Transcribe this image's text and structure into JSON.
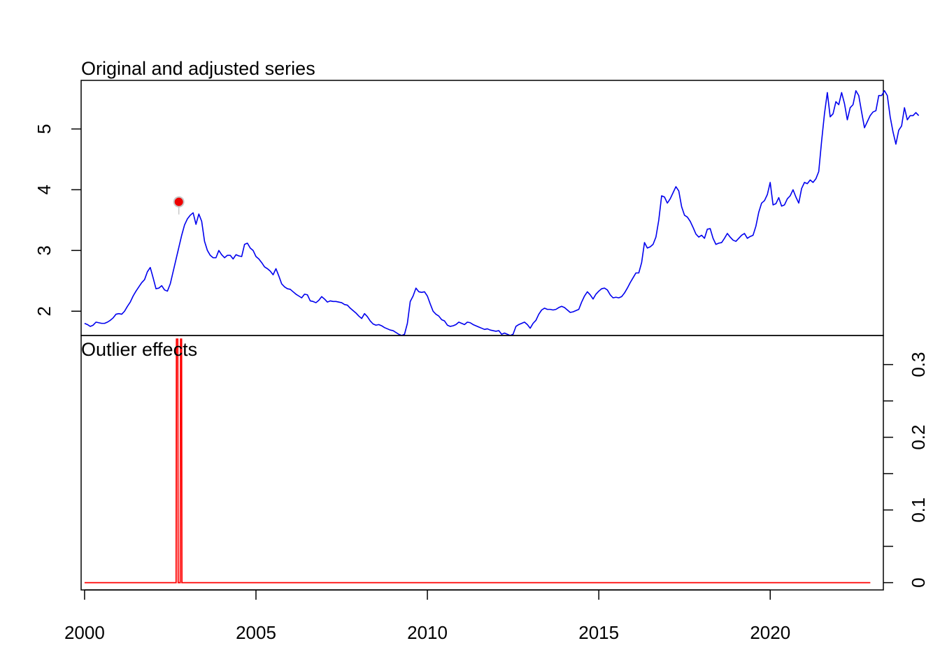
{
  "panels": {
    "top_title": "Original and adjusted series",
    "bottom_title": "Outlier effects"
  },
  "colors": {
    "series": "#0000ee",
    "outlier": "#ff0000",
    "outlier_marker_fill": "#ee0000",
    "outlier_marker_ring": "#c8c8c8",
    "frame": "#000000"
  },
  "chart_data": [
    {
      "panel": "top",
      "type": "line",
      "title": "Original and adjusted series",
      "xlabel": "",
      "ylabel": "",
      "xlim": [
        1999.9,
        2023.3
      ],
      "ylim": [
        1.6,
        5.8
      ],
      "y_ticks": [
        2,
        3,
        4,
        5
      ],
      "y_tick_labels": [
        "2",
        "3",
        "4",
        "5"
      ],
      "y_axis_side": "left",
      "grid": false,
      "series": [
        {
          "color": "#0000ee",
          "x_start": 2000.0,
          "x_step": 0.08333,
          "values": [
            1.8,
            1.78,
            1.75,
            1.77,
            1.82,
            1.81,
            1.8,
            1.8,
            1.82,
            1.85,
            1.89,
            1.95,
            1.96,
            1.95,
            2.0,
            2.08,
            2.15,
            2.25,
            2.33,
            2.4,
            2.47,
            2.52,
            2.65,
            2.72,
            2.55,
            2.37,
            2.38,
            2.42,
            2.35,
            2.33,
            2.45,
            2.65,
            2.85,
            3.05,
            3.25,
            3.42,
            3.52,
            3.58,
            3.62,
            3.43,
            3.6,
            3.48,
            3.15,
            3.0,
            2.92,
            2.88,
            2.88,
            3.0,
            2.93,
            2.88,
            2.92,
            2.92,
            2.86,
            2.93,
            2.91,
            2.9,
            3.1,
            3.12,
            3.04,
            3.0,
            2.9,
            2.86,
            2.8,
            2.73,
            2.7,
            2.66,
            2.6,
            2.7,
            2.58,
            2.45,
            2.4,
            2.37,
            2.36,
            2.32,
            2.28,
            2.25,
            2.22,
            2.28,
            2.27,
            2.17,
            2.16,
            2.14,
            2.18,
            2.24,
            2.2,
            2.15,
            2.17,
            2.16,
            2.16,
            2.15,
            2.14,
            2.11,
            2.1,
            2.05,
            2.01,
            1.97,
            1.92,
            1.88,
            1.96,
            1.91,
            1.84,
            1.79,
            1.77,
            1.78,
            1.76,
            1.73,
            1.71,
            1.69,
            1.68,
            1.65,
            1.62,
            1.6,
            1.62,
            1.8,
            2.16,
            2.25,
            2.38,
            2.32,
            2.31,
            2.32,
            2.25,
            2.12,
            2.0,
            1.95,
            1.92,
            1.86,
            1.84,
            1.77,
            1.75,
            1.76,
            1.78,
            1.82,
            1.8,
            1.78,
            1.82,
            1.81,
            1.78,
            1.76,
            1.74,
            1.72,
            1.7,
            1.71,
            1.69,
            1.68,
            1.67,
            1.68,
            1.62,
            1.64,
            1.62,
            1.6,
            1.62,
            1.75,
            1.78,
            1.8,
            1.82,
            1.78,
            1.72,
            1.8,
            1.85,
            1.95,
            2.02,
            2.05,
            2.03,
            2.03,
            2.02,
            2.03,
            2.06,
            2.08,
            2.06,
            2.02,
            1.98,
            1.99,
            2.01,
            2.03,
            2.15,
            2.25,
            2.32,
            2.27,
            2.2,
            2.28,
            2.33,
            2.37,
            2.38,
            2.35,
            2.27,
            2.22,
            2.23,
            2.22,
            2.24,
            2.3,
            2.38,
            2.47,
            2.55,
            2.63,
            2.63,
            2.8,
            3.13,
            3.04,
            3.06,
            3.1,
            3.22,
            3.5,
            3.9,
            3.88,
            3.78,
            3.85,
            3.95,
            4.05,
            3.98,
            3.72,
            3.58,
            3.55,
            3.48,
            3.38,
            3.27,
            3.22,
            3.25,
            3.2,
            3.35,
            3.36,
            3.2,
            3.1,
            3.12,
            3.13,
            3.2,
            3.28,
            3.22,
            3.17,
            3.15,
            3.2,
            3.25,
            3.28,
            3.2,
            3.23,
            3.25,
            3.4,
            3.63,
            3.78,
            3.82,
            3.92,
            4.12,
            3.75,
            3.77,
            3.87,
            3.73,
            3.75,
            3.85,
            3.9,
            4.0,
            3.88,
            3.78,
            4.02,
            4.12,
            4.1,
            4.16,
            4.12,
            4.18,
            4.3,
            4.8,
            5.25,
            5.6,
            5.2,
            5.25,
            5.45,
            5.4,
            5.6,
            5.42,
            5.15,
            5.35,
            5.4,
            5.63,
            5.55,
            5.28,
            5.02,
            5.12,
            5.22,
            5.28,
            5.3,
            5.55,
            5.55,
            5.63,
            5.55,
            5.2,
            4.95,
            4.75,
            4.98,
            5.05,
            5.35,
            5.15,
            5.22,
            5.22,
            5.27,
            5.22
          ]
        }
      ],
      "outlier_points": [
        {
          "x": 2002.75,
          "y": 3.8
        }
      ]
    },
    {
      "panel": "bottom",
      "type": "line",
      "title": "Outlier effects",
      "xlabel": "",
      "ylabel": "",
      "xlim": [
        1999.9,
        2023.3
      ],
      "ylim": [
        -0.01,
        0.34
      ],
      "y_ticks": [
        0,
        0.05,
        0.1,
        0.15,
        0.2,
        0.25,
        0.3
      ],
      "y_tick_labels": [
        "0",
        "",
        "0.1",
        "",
        "0.2",
        "",
        "0.3"
      ],
      "y_axis_side": "right",
      "x_ticks": [
        2000,
        2005,
        2010,
        2015,
        2020
      ],
      "x_tick_labels": [
        "2000",
        "2005",
        "2010",
        "2015",
        "2020"
      ],
      "grid": false,
      "series": [
        {
          "color": "#ff0000",
          "points": [
            [
              2000.0,
              0
            ],
            [
              2002.67,
              0
            ],
            [
              2002.68,
              0.335
            ],
            [
              2002.72,
              0.335
            ],
            [
              2002.73,
              0
            ],
            [
              2002.79,
              0
            ],
            [
              2002.8,
              0.335
            ],
            [
              2002.83,
              0.335
            ],
            [
              2002.84,
              0
            ],
            [
              2022.92,
              0
            ]
          ]
        }
      ]
    }
  ]
}
